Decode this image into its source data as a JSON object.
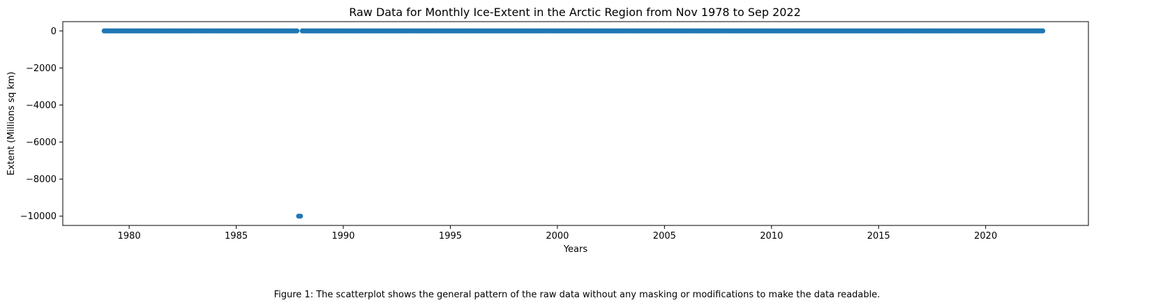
{
  "chart_data": {
    "type": "scatter",
    "title": "Raw Data for Monthly Ice-Extent in the Arctic Region from Nov 1978 to Sep 2022",
    "xlabel": "Years",
    "ylabel": "Extent (Millions sq km)",
    "xlim": [
      1976.9,
      2024.8
    ],
    "ylim": [
      -10500,
      500
    ],
    "xticks": [
      1980,
      1985,
      1990,
      1995,
      2000,
      2005,
      2010,
      2015,
      2020
    ],
    "xtick_labels": [
      "1980",
      "1985",
      "1990",
      "1995",
      "2000",
      "2005",
      "2010",
      "2015",
      "2020"
    ],
    "yticks": [
      0,
      -2000,
      -4000,
      -6000,
      -8000,
      -10000
    ],
    "ytick_labels": [
      "0",
      "−2000",
      "−4000",
      "−6000",
      "−8000",
      "−10000"
    ],
    "series_color": "#1f77b4",
    "grid": false,
    "legend": false,
    "series": [
      {
        "start": "1978-11",
        "end": "2022-09",
        "frequency": "monthly",
        "typical_value": 0,
        "missing_months": [
          "1987-12",
          "1988-01"
        ],
        "outliers": [
          {
            "x": "1987-12",
            "y": -9999
          },
          {
            "x": "1988-01",
            "y": -9999
          }
        ]
      }
    ]
  },
  "caption": "Figure 1: The scatterplot shows the general pattern of the raw data without any masking or modifications to make the data readable."
}
